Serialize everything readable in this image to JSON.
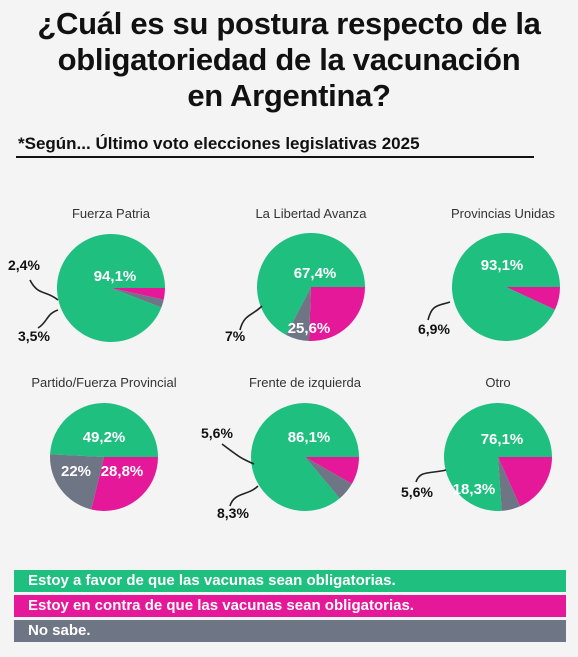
{
  "title_lines": [
    "¿Cuál es su postura respecto de la",
    "obligatoriedad de la vacunación",
    "en Argentina?"
  ],
  "subtitle": "*Según...   Último voto elecciones legislativas 2025",
  "colors": {
    "favor": "#1fbf7f",
    "contra": "#e5189a",
    "nosabe": "#6e7584"
  },
  "legend": [
    {
      "key": "favor",
      "label": "Estoy a favor de que las vacunas sean obligatorias."
    },
    {
      "key": "contra",
      "label": "Estoy en contra de que las vacunas sean obligatorias."
    },
    {
      "key": "nosabe",
      "label": "No sabe."
    }
  ],
  "chart_data": [
    {
      "type": "pie",
      "title": "Fuerza Patria",
      "slices": [
        {
          "category": "favor",
          "value": 94.1,
          "label": "94,1%"
        },
        {
          "category": "contra",
          "value": 3.5,
          "label": "3,5%"
        },
        {
          "category": "nosabe",
          "value": 2.4,
          "label": "2,4%"
        }
      ]
    },
    {
      "type": "pie",
      "title": "La Libertad Avanza",
      "slices": [
        {
          "category": "favor",
          "value": 67.4,
          "label": "67,4%"
        },
        {
          "category": "contra",
          "value": 25.6,
          "label": "25,6%"
        },
        {
          "category": "nosabe",
          "value": 7,
          "label": "7%"
        }
      ]
    },
    {
      "type": "pie",
      "title": "Provincias Unidas",
      "slices": [
        {
          "category": "favor",
          "value": 93.1,
          "label": "93,1%"
        },
        {
          "category": "contra",
          "value": 6.9,
          "label": "6,9%"
        }
      ]
    },
    {
      "type": "pie",
      "title": "Partido/Fuerza Provincial",
      "slices": [
        {
          "category": "favor",
          "value": 49.2,
          "label": "49,2%"
        },
        {
          "category": "contra",
          "value": 28.8,
          "label": "28,8%"
        },
        {
          "category": "nosabe",
          "value": 22,
          "label": "22%"
        }
      ]
    },
    {
      "type": "pie",
      "title": "Frente de izquierda",
      "slices": [
        {
          "category": "favor",
          "value": 86.1,
          "label": "86,1%"
        },
        {
          "category": "contra",
          "value": 8.3,
          "label": "8,3%"
        },
        {
          "category": "nosabe",
          "value": 5.6,
          "label": "5,6%"
        }
      ]
    },
    {
      "type": "pie",
      "title": "Otro",
      "slices": [
        {
          "category": "favor",
          "value": 76.1,
          "label": "76,1%"
        },
        {
          "category": "contra",
          "value": 18.3,
          "label": "18,3%"
        },
        {
          "category": "nosabe",
          "value": 5.6,
          "label": "5,6%"
        }
      ]
    }
  ]
}
